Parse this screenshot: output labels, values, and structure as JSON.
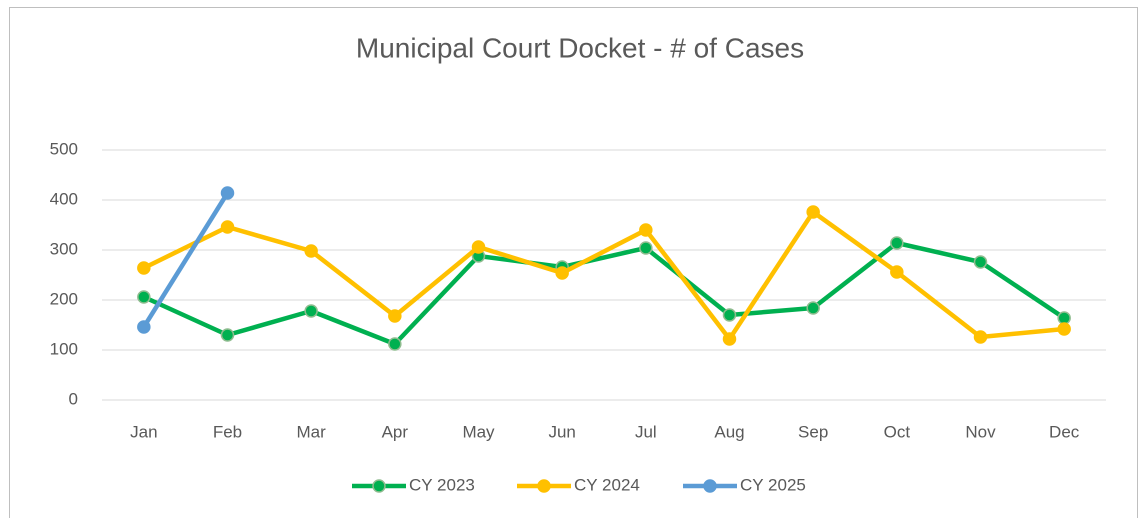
{
  "chart_data": {
    "type": "line",
    "title": "Municipal Court Docket - # of Cases",
    "categories": [
      "Jan",
      "Feb",
      "Mar",
      "Apr",
      "May",
      "Jun",
      "Jul",
      "Aug",
      "Sep",
      "Oct",
      "Nov",
      "Dec"
    ],
    "series": [
      {
        "name": "CY 2023",
        "color": "#00b050",
        "values": [
          206,
          130,
          178,
          112,
          288,
          266,
          304,
          170,
          184,
          314,
          276,
          164
        ]
      },
      {
        "name": "CY 2024",
        "color": "#ffc000",
        "values": [
          264,
          346,
          298,
          168,
          306,
          254,
          340,
          122,
          376,
          256,
          126,
          142
        ]
      },
      {
        "name": "CY 2025",
        "color": "#5b9bd5",
        "values": [
          146,
          414,
          null,
          null,
          null,
          null,
          null,
          null,
          null,
          null,
          null,
          null
        ]
      }
    ],
    "ylim": [
      0,
      500
    ],
    "yticks": [
      0,
      100,
      200,
      300,
      400,
      500
    ],
    "grid": true,
    "legend": "bottom"
  }
}
